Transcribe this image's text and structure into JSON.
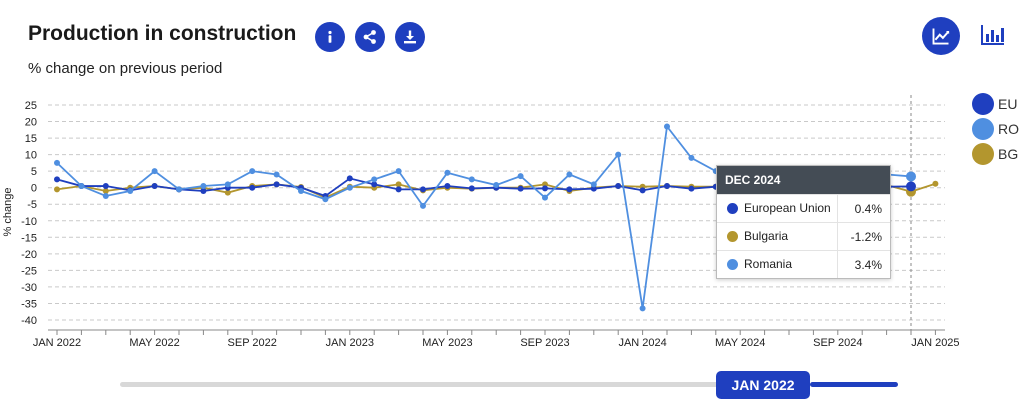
{
  "header": {
    "title": "Production in construction",
    "subtitle": "% change on previous period"
  },
  "toolbar": {
    "info_icon": "info-icon",
    "share_icon": "share-icon",
    "download_icon": "download-icon",
    "line_view_icon": "line-chart-icon",
    "bar_view_icon": "bar-chart-icon"
  },
  "colors": {
    "accent": "#1f3fbf",
    "eu": "#1f3fbf",
    "ro": "#4f8fe0",
    "bg": "#b3962e"
  },
  "chart_data": {
    "type": "line",
    "ylabel": "% change",
    "ylim": [
      -40,
      25
    ],
    "yticks": [
      25,
      20,
      15,
      10,
      5,
      0,
      -5,
      -10,
      -15,
      -20,
      -25,
      -30,
      -35,
      -40
    ],
    "xtick_labels": [
      "JAN 2022",
      "MAY 2022",
      "SEP 2022",
      "JAN 2023",
      "MAY 2023",
      "SEP 2023",
      "JAN 2024",
      "MAY 2024",
      "SEP 2024",
      "JAN 2025"
    ],
    "x": [
      "2022-01",
      "2022-02",
      "2022-03",
      "2022-04",
      "2022-05",
      "2022-06",
      "2022-07",
      "2022-08",
      "2022-09",
      "2022-10",
      "2022-11",
      "2022-12",
      "2023-01",
      "2023-02",
      "2023-03",
      "2023-04",
      "2023-05",
      "2023-06",
      "2023-07",
      "2023-08",
      "2023-09",
      "2023-10",
      "2023-11",
      "2023-12",
      "2024-01",
      "2024-02",
      "2024-03",
      "2024-04",
      "2024-05",
      "2024-06",
      "2024-07",
      "2024-08",
      "2024-09",
      "2024-10",
      "2024-11",
      "2024-12",
      "2025-01"
    ],
    "grid": true,
    "series": [
      {
        "name": "EU",
        "values": [
          2.5,
          0.5,
          0.5,
          -0.8,
          0.5,
          -0.5,
          -1.0,
          0.0,
          0.0,
          1.0,
          0.0,
          -2.5,
          2.8,
          1.0,
          -0.5,
          -0.5,
          0.5,
          -0.2,
          0.0,
          -0.3,
          -0.2,
          -0.5,
          -0.3,
          0.5,
          -0.8,
          0.5,
          -0.3,
          0.3,
          1.0,
          0.5,
          0.3,
          0.5,
          0.5,
          0.4,
          0.3,
          0.4,
          null
        ]
      },
      {
        "name": "RO",
        "values": [
          7.5,
          0.5,
          -2.5,
          -1.0,
          5.0,
          -0.5,
          0.5,
          1.0,
          5.0,
          4.0,
          -1.0,
          -3.5,
          0.0,
          2.5,
          5.0,
          -5.5,
          4.5,
          2.5,
          0.8,
          3.5,
          -3.0,
          4.0,
          1.0,
          10.0,
          -36.5,
          18.5,
          9.0,
          5.0,
          4.5,
          3.0,
          2.0,
          3.0,
          3.5,
          3.0,
          4.0,
          3.4,
          null
        ]
      },
      {
        "name": "BG",
        "values": [
          -0.5,
          0.5,
          -1.0,
          0.0,
          0.5,
          -0.5,
          0.0,
          -1.5,
          0.5,
          1.0,
          0.2,
          -3.0,
          0.3,
          0.0,
          1.0,
          -0.8,
          0.0,
          -0.3,
          0.0,
          0.0,
          1.0,
          -1.0,
          0.0,
          0.5,
          0.3,
          0.5,
          0.3,
          0.3,
          0.3,
          0.3,
          0.3,
          0.3,
          0.3,
          0.5,
          0.8,
          -1.2,
          1.2
        ]
      }
    ],
    "legend_position": "right"
  },
  "tooltip": {
    "title": "DEC 2024",
    "rows": [
      {
        "label": "European Union",
        "value": "0.4%"
      },
      {
        "label": "Bulgaria",
        "value": "-1.2%"
      },
      {
        "label": "Romania",
        "value": "3.4%"
      }
    ]
  },
  "slider": {
    "label": "JAN 2022"
  }
}
